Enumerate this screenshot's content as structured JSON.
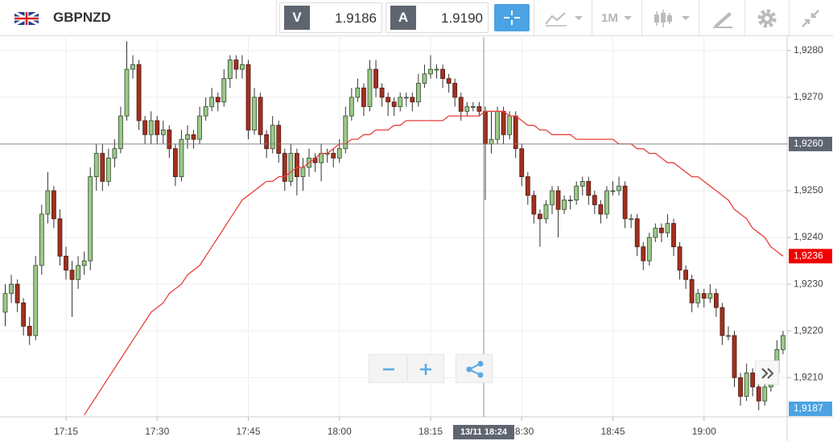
{
  "toolbar": {
    "symbol": "GBPNZD",
    "bid_label": "V",
    "bid": "1.9186",
    "ask_label": "A",
    "ask": "1.9190",
    "timeframe": "1M"
  },
  "chart_data": {
    "type": "candlestick",
    "categories": [
      null,
      null,
      null,
      null,
      null,
      null,
      null,
      null,
      null,
      null,
      "17:15",
      null,
      null,
      null,
      null,
      null,
      null,
      null,
      null,
      null,
      null,
      null,
      null,
      null,
      null,
      "17:30",
      null,
      null,
      null,
      null,
      null,
      null,
      null,
      null,
      null,
      null,
      null,
      null,
      null,
      null,
      "17:45",
      null,
      null,
      null,
      null,
      null,
      null,
      null,
      null,
      null,
      null,
      null,
      null,
      null,
      null,
      "18:00",
      null,
      null,
      null,
      null,
      null,
      null,
      null,
      null,
      null,
      null,
      null,
      null,
      null,
      null,
      "18:15",
      null,
      null,
      null,
      null,
      null,
      null,
      null,
      null,
      null,
      null,
      null,
      null,
      null,
      null,
      "18:30",
      null,
      null,
      null,
      null,
      null,
      null,
      null,
      null,
      null,
      null,
      null,
      null,
      null,
      null,
      "18:45",
      null,
      null,
      null,
      null,
      null,
      null,
      null,
      null,
      null,
      null,
      null,
      null,
      null,
      null,
      "19:00",
      null,
      null,
      null,
      null,
      null,
      null,
      null,
      null,
      null,
      null,
      null,
      null,
      null
    ],
    "ohlc": [
      [
        1.9224,
        1.923,
        1.9221,
        1.9228
      ],
      [
        1.9228,
        1.9232,
        1.9226,
        1.923
      ],
      [
        1.923,
        1.9231,
        1.9224,
        1.9226
      ],
      [
        1.9226,
        1.9227,
        1.9219,
        1.9221
      ],
      [
        1.9221,
        1.9223,
        1.9217,
        1.9219
      ],
      [
        1.9219,
        1.9236,
        1.9218,
        1.9234
      ],
      [
        1.9234,
        1.9247,
        1.9232,
        1.9245
      ],
      [
        1.9245,
        1.9254,
        1.9243,
        1.925
      ],
      [
        1.925,
        1.9251,
        1.9242,
        1.9244
      ],
      [
        1.9244,
        1.9246,
        1.9234,
        1.9236
      ],
      [
        1.9236,
        1.9238,
        1.9231,
        1.9233
      ],
      [
        1.9233,
        1.9235,
        1.9223,
        1.9231
      ],
      [
        1.9231,
        1.9236,
        1.9229,
        1.9234
      ],
      [
        1.9234,
        1.9237,
        1.9232,
        1.9235
      ],
      [
        1.9235,
        1.9255,
        1.9233,
        1.9253
      ],
      [
        1.9253,
        1.926,
        1.925,
        1.9258
      ],
      [
        1.9258,
        1.926,
        1.925,
        1.9252
      ],
      [
        1.9252,
        1.9259,
        1.9251,
        1.9257
      ],
      [
        1.9257,
        1.9261,
        1.9255,
        1.9259
      ],
      [
        1.9259,
        1.9268,
        1.9258,
        1.9266
      ],
      [
        1.9266,
        1.9282,
        1.9265,
        1.9276
      ],
      [
        1.9276,
        1.9279,
        1.9274,
        1.9277
      ],
      [
        1.9277,
        1.9278,
        1.9263,
        1.9265
      ],
      [
        1.9265,
        1.9266,
        1.926,
        1.9262
      ],
      [
        1.9262,
        1.9267,
        1.926,
        1.9265
      ],
      [
        1.9265,
        1.9266,
        1.926,
        1.9262
      ],
      [
        1.9262,
        1.9265,
        1.926,
        1.9263
      ],
      [
        1.9263,
        1.9264,
        1.9257,
        1.9259
      ],
      [
        1.9259,
        1.926,
        1.9251,
        1.9253
      ],
      [
        1.9253,
        1.9263,
        1.9252,
        1.9261
      ],
      [
        1.9261,
        1.9264,
        1.9259,
        1.9262
      ],
      [
        1.9262,
        1.9263,
        1.9259,
        1.9261
      ],
      [
        1.9261,
        1.9268,
        1.926,
        1.9266
      ],
      [
        1.9266,
        1.927,
        1.9265,
        1.9268
      ],
      [
        1.9268,
        1.9272,
        1.9267,
        1.927
      ],
      [
        1.927,
        1.9271,
        1.9267,
        1.9269
      ],
      [
        1.9269,
        1.9276,
        1.9268,
        1.9274
      ],
      [
        1.9274,
        1.9279,
        1.9272,
        1.9278
      ],
      [
        1.9278,
        1.9279,
        1.9274,
        1.9276
      ],
      [
        1.9276,
        1.9279,
        1.9274,
        1.9277
      ],
      [
        1.9277,
        1.9278,
        1.9261,
        1.9263
      ],
      [
        1.9263,
        1.9272,
        1.9262,
        1.927
      ],
      [
        1.927,
        1.9271,
        1.926,
        1.9262
      ],
      [
        1.9262,
        1.9263,
        1.9257,
        1.9259
      ],
      [
        1.9259,
        1.9266,
        1.9258,
        1.9264
      ],
      [
        1.9264,
        1.9265,
        1.9256,
        1.9258
      ],
      [
        1.9258,
        1.9259,
        1.925,
        1.9252
      ],
      [
        1.9252,
        1.926,
        1.9251,
        1.9258
      ],
      [
        1.9258,
        1.9259,
        1.9249,
        1.9253
      ],
      [
        1.9253,
        1.9257,
        1.925,
        1.9255
      ],
      [
        1.9255,
        1.9259,
        1.9253,
        1.9257
      ],
      [
        1.9257,
        1.9258,
        1.9254,
        1.9256
      ],
      [
        1.9256,
        1.926,
        1.9252,
        1.9258
      ],
      [
        1.9258,
        1.9259,
        1.9256,
        1.9258
      ],
      [
        1.9258,
        1.9259,
        1.9255,
        1.9257
      ],
      [
        1.9257,
        1.9261,
        1.9256,
        1.9259
      ],
      [
        1.9259,
        1.9268,
        1.9258,
        1.9266
      ],
      [
        1.9266,
        1.9272,
        1.9265,
        1.927
      ],
      [
        1.927,
        1.9274,
        1.9269,
        1.9272
      ],
      [
        1.9272,
        1.9273,
        1.9266,
        1.9268
      ],
      [
        1.9268,
        1.9278,
        1.9267,
        1.9276
      ],
      [
        1.9276,
        1.9278,
        1.927,
        1.9272
      ],
      [
        1.9272,
        1.9273,
        1.9268,
        1.927
      ],
      [
        1.927,
        1.9271,
        1.9266,
        1.9269
      ],
      [
        1.9269,
        1.927,
        1.9266,
        1.9268
      ],
      [
        1.9268,
        1.9271,
        1.9267,
        1.927
      ],
      [
        1.927,
        1.9271,
        1.9268,
        1.927
      ],
      [
        1.927,
        1.9271,
        1.9267,
        1.9269
      ],
      [
        1.9269,
        1.9275,
        1.9268,
        1.9273
      ],
      [
        1.9273,
        1.9277,
        1.9272,
        1.9275
      ],
      [
        1.9275,
        1.9279,
        1.9274,
        1.9276
      ],
      [
        1.9276,
        1.9277,
        1.9274,
        1.9276
      ],
      [
        1.9276,
        1.9277,
        1.9272,
        1.9274
      ],
      [
        1.9274,
        1.9275,
        1.9271,
        1.9273
      ],
      [
        1.9273,
        1.9274,
        1.9268,
        1.927
      ],
      [
        1.927,
        1.9271,
        1.9265,
        1.9267
      ],
      [
        1.9267,
        1.9269,
        1.9266,
        1.9268
      ],
      [
        1.9268,
        1.9269,
        1.9267,
        1.9268
      ],
      [
        1.9268,
        1.9269,
        1.9266,
        1.9267
      ],
      [
        1.9267,
        1.9268,
        1.9248,
        1.926
      ],
      [
        1.926,
        1.9267,
        1.9258,
        1.9261
      ],
      [
        1.9261,
        1.9268,
        1.926,
        1.9267
      ],
      [
        1.9267,
        1.9268,
        1.926,
        1.9262
      ],
      [
        1.9262,
        1.9267,
        1.9261,
        1.9266
      ],
      [
        1.9266,
        1.9267,
        1.9257,
        1.9259
      ],
      [
        1.9259,
        1.926,
        1.9251,
        1.9253
      ],
      [
        1.9253,
        1.9254,
        1.9247,
        1.9249
      ],
      [
        1.9249,
        1.925,
        1.9243,
        1.9245
      ],
      [
        1.9245,
        1.9246,
        1.9238,
        1.9244
      ],
      [
        1.9244,
        1.9248,
        1.9243,
        1.9247
      ],
      [
        1.9247,
        1.9251,
        1.9245,
        1.925
      ],
      [
        1.925,
        1.9251,
        1.924,
        1.9246
      ],
      [
        1.9246,
        1.9249,
        1.9245,
        1.9248
      ],
      [
        1.9248,
        1.9249,
        1.9246,
        1.9248
      ],
      [
        1.9248,
        1.9252,
        1.9247,
        1.9251
      ],
      [
        1.9251,
        1.9253,
        1.9249,
        1.9252
      ],
      [
        1.9252,
        1.9253,
        1.9247,
        1.9249
      ],
      [
        1.9249,
        1.925,
        1.9245,
        1.9247
      ],
      [
        1.9247,
        1.9248,
        1.9243,
        1.9245
      ],
      [
        1.9245,
        1.9251,
        1.9244,
        1.925
      ],
      [
        1.925,
        1.9252,
        1.9249,
        1.925
      ],
      [
        1.925,
        1.9253,
        1.9249,
        1.9251
      ],
      [
        1.9251,
        1.9252,
        1.9242,
        1.9244
      ],
      [
        1.9244,
        1.9245,
        1.9242,
        1.9244
      ],
      [
        1.9244,
        1.9245,
        1.9236,
        1.9238
      ],
      [
        1.9238,
        1.9239,
        1.9233,
        1.9235
      ],
      [
        1.9235,
        1.9241,
        1.9234,
        1.924
      ],
      [
        1.924,
        1.9243,
        1.9239,
        1.9242
      ],
      [
        1.9242,
        1.9243,
        1.9239,
        1.9241
      ],
      [
        1.9241,
        1.9245,
        1.924,
        1.9243
      ],
      [
        1.9243,
        1.9244,
        1.9236,
        1.9238
      ],
      [
        1.9238,
        1.9239,
        1.9231,
        1.9233
      ],
      [
        1.9233,
        1.9234,
        1.9229,
        1.9231
      ],
      [
        1.9231,
        1.9232,
        1.9224,
        1.9226
      ],
      [
        1.9226,
        1.9229,
        1.9225,
        1.9228
      ],
      [
        1.9228,
        1.9229,
        1.9225,
        1.9227
      ],
      [
        1.9227,
        1.923,
        1.9226,
        1.9228
      ],
      [
        1.9228,
        1.9229,
        1.9223,
        1.9225
      ],
      [
        1.9225,
        1.9226,
        1.9217,
        1.9219
      ],
      [
        1.9219,
        1.9221,
        1.9218,
        1.9219
      ],
      [
        1.9219,
        1.922,
        1.9208,
        1.921
      ],
      [
        1.921,
        1.9211,
        1.9204,
        1.9206
      ],
      [
        1.9206,
        1.9213,
        1.9205,
        1.9211
      ],
      [
        1.9211,
        1.9212,
        1.9206,
        1.9208
      ],
      [
        1.9208,
        1.9209,
        1.9203,
        1.9205
      ],
      [
        1.9205,
        1.9209,
        1.9204,
        1.9208
      ],
      [
        1.9208,
        1.9212,
        1.9207,
        1.9211
      ],
      [
        1.9211,
        1.9218,
        1.921,
        1.9216
      ],
      [
        1.9216,
        1.922,
        1.9215,
        1.9219
      ]
    ],
    "up_color": "#9cc98a",
    "down_color": "#a3301f",
    "ma": {
      "color": "#e8413b",
      "values": [
        null,
        null,
        null,
        null,
        null,
        null,
        null,
        null,
        null,
        null,
        null,
        null,
        null,
        1.9202,
        1.9204,
        1.9206,
        1.9208,
        1.921,
        1.9212,
        1.9214,
        1.9216,
        1.9218,
        1.922,
        1.9222,
        1.9224,
        1.9225,
        1.9226,
        1.9228,
        1.9229,
        1.923,
        1.9232,
        1.9233,
        1.9234,
        1.9236,
        1.9238,
        1.924,
        1.9242,
        1.9244,
        1.9246,
        1.9248,
        1.9249,
        1.925,
        1.9251,
        1.9252,
        1.9252,
        1.9253,
        1.9253,
        1.9254,
        1.9255,
        1.9255,
        1.9256,
        1.9257,
        1.9258,
        1.9258,
        1.9259,
        1.926,
        1.926,
        1.9261,
        1.9261,
        1.9262,
        1.9262,
        1.9263,
        1.9263,
        1.9263,
        1.9264,
        1.9264,
        1.9265,
        1.9265,
        1.9265,
        1.9265,
        1.9265,
        1.9265,
        1.9265,
        1.9266,
        1.9266,
        1.9266,
        1.9266,
        1.9266,
        1.9266,
        1.9267,
        1.9267,
        1.9267,
        1.9267,
        1.9266,
        1.9266,
        1.9265,
        1.9264,
        1.9264,
        1.9263,
        1.9263,
        1.9262,
        1.9262,
        1.9262,
        1.9262,
        1.9261,
        1.9261,
        1.9261,
        1.9261,
        1.9261,
        1.9261,
        1.9261,
        1.926,
        1.926,
        1.926,
        1.9259,
        1.9259,
        1.9258,
        1.9258,
        1.9257,
        1.9256,
        1.9256,
        1.9255,
        1.9254,
        1.9253,
        1.9253,
        1.9252,
        1.9251,
        1.925,
        1.9249,
        1.9248,
        1.9246,
        1.9245,
        1.9244,
        1.9242,
        1.9241,
        1.924,
        1.9238,
        1.9237,
        1.9236
      ]
    },
    "ylim": [
      1.92016,
      1.92829
    ],
    "yticks": [
      {
        "value": 1.921,
        "label": "1,9210"
      },
      {
        "value": 1.922,
        "label": "1,9220"
      },
      {
        "value": 1.923,
        "label": "1,9230"
      },
      {
        "value": 1.924,
        "label": "1,9240"
      },
      {
        "value": 1.925,
        "label": "1,9250"
      },
      {
        "value": 1.926,
        "label": "1,9260"
      },
      {
        "value": 1.927,
        "label": "1,9270"
      },
      {
        "value": 1.928,
        "label": "1,9280"
      }
    ],
    "grid": true,
    "crosshair": {
      "time_label": "13/11 18:24",
      "price": {
        "value": 1.926,
        "label": "1,9260"
      }
    },
    "ma_label": {
      "value": 1.9236,
      "label": "1,9236"
    },
    "price_label": "1,9187"
  }
}
